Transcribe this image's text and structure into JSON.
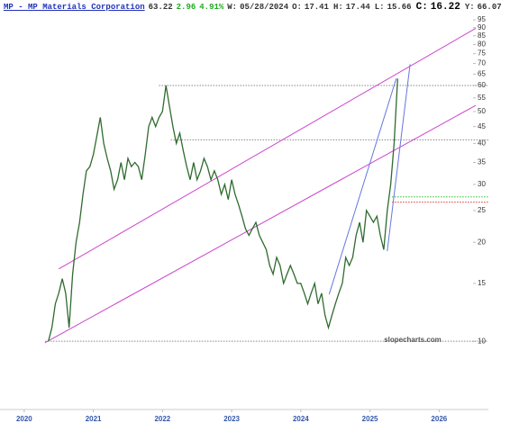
{
  "chart_data": {
    "type": "line",
    "title": "MP - MP Materials Corporation",
    "quote": {
      "last": "63.22",
      "change": "2.96",
      "change_pct": "4.91%",
      "date_label": "W:",
      "date": "05/28/2024",
      "fields": [
        {
          "label": "O:",
          "value": "17.41"
        },
        {
          "label": "H:",
          "value": "17.44"
        },
        {
          "label": "L:",
          "value": "15.66"
        },
        {
          "label": "C:",
          "value": "16.22"
        },
        {
          "label": "Y:",
          "value": "66.07"
        }
      ]
    },
    "watermark": "slopecharts.com",
    "log_scale": true,
    "color": "#2f6b2f",
    "x": [
      2020.35,
      2020.4,
      2020.45,
      2020.5,
      2020.55,
      2020.6,
      2020.65,
      2020.7,
      2020.75,
      2020.8,
      2020.85,
      2020.9,
      2020.95,
      2021.0,
      2021.05,
      2021.1,
      2021.15,
      2021.2,
      2021.25,
      2021.3,
      2021.35,
      2021.4,
      2021.45,
      2021.5,
      2021.55,
      2021.6,
      2021.65,
      2021.7,
      2021.75,
      2021.8,
      2021.85,
      2021.9,
      2021.95,
      2022.0,
      2022.05,
      2022.1,
      2022.15,
      2022.2,
      2022.25,
      2022.3,
      2022.35,
      2022.4,
      2022.45,
      2022.5,
      2022.55,
      2022.6,
      2022.65,
      2022.7,
      2022.75,
      2022.8,
      2022.85,
      2022.9,
      2022.95,
      2023.0,
      2023.05,
      2023.1,
      2023.15,
      2023.2,
      2023.25,
      2023.3,
      2023.35,
      2023.4,
      2023.45,
      2023.5,
      2023.55,
      2023.6,
      2023.65,
      2023.7,
      2023.75,
      2023.8,
      2023.85,
      2023.9,
      2023.95,
      2024.0,
      2024.05,
      2024.1,
      2024.15,
      2024.2,
      2024.25,
      2024.3,
      2024.35,
      2024.4,
      2024.45,
      2024.5,
      2024.55,
      2024.6,
      2024.65,
      2024.7,
      2024.75,
      2024.8,
      2024.85,
      2024.9,
      2024.95,
      2025.0,
      2025.05,
      2025.1,
      2025.15,
      2025.2,
      2025.25,
      2025.3,
      2025.35,
      2025.4
    ],
    "values": [
      10,
      11,
      13,
      14,
      15.5,
      14,
      11,
      16,
      20,
      23,
      28,
      33,
      34,
      37,
      42,
      48,
      40,
      36,
      33,
      29,
      31,
      35,
      31,
      36,
      34,
      35,
      34,
      31,
      37,
      45,
      48,
      45,
      48,
      50,
      60,
      52,
      45,
      40,
      43,
      38,
      34,
      31,
      35,
      31,
      33,
      36,
      34,
      31,
      33,
      31,
      28,
      30,
      27,
      31,
      28,
      26,
      24,
      22,
      21,
      22,
      23,
      21,
      20,
      19,
      17,
      16,
      18,
      17,
      15,
      16,
      17,
      16,
      15,
      15,
      14,
      13,
      14,
      15,
      13,
      14,
      12,
      11,
      12,
      13,
      14,
      15,
      18,
      17,
      18,
      21,
      23,
      20,
      25,
      24,
      23,
      24,
      21,
      19,
      25,
      30,
      40,
      63
    ],
    "xlim": [
      2019.65,
      2026.53
    ],
    "xticks": [
      2020,
      2021,
      2022,
      2023,
      2024,
      2025,
      2026
    ],
    "ylim": [
      6.2,
      100
    ],
    "yticks": [
      10,
      15,
      20,
      25,
      30,
      35,
      40,
      45,
      50,
      55,
      60,
      65,
      70,
      75,
      80,
      85,
      90,
      95
    ],
    "hlines": [
      {
        "value": 60,
        "from": 2021.95,
        "color": "#888888"
      },
      {
        "value": 41,
        "from": 2022.12,
        "color": "#888888"
      },
      {
        "value": 10,
        "from": 2020.3,
        "color": "#888888"
      },
      {
        "value": 27.5,
        "from": 2025.32,
        "color": "#33bb33"
      },
      {
        "value": 26.5,
        "from": 2025.32,
        "color": "#dd3333"
      }
    ],
    "trendlines": [
      {
        "x": [
          2020.5,
          2026.53
        ],
        "y": [
          16.6,
          89.6
        ],
        "color": "#cc44cc"
      },
      {
        "x": [
          2020.3,
          2026.53
        ],
        "y": [
          9.9,
          52.2
        ],
        "color": "#cc44cc"
      },
      {
        "x": [
          2024.41,
          2025.38
        ],
        "y": [
          13.9,
          63.0
        ],
        "color": "#6677dd"
      },
      {
        "x": [
          2025.25,
          2025.58
        ],
        "y": [
          18.8,
          69.6
        ],
        "color": "#6677dd"
      }
    ]
  }
}
